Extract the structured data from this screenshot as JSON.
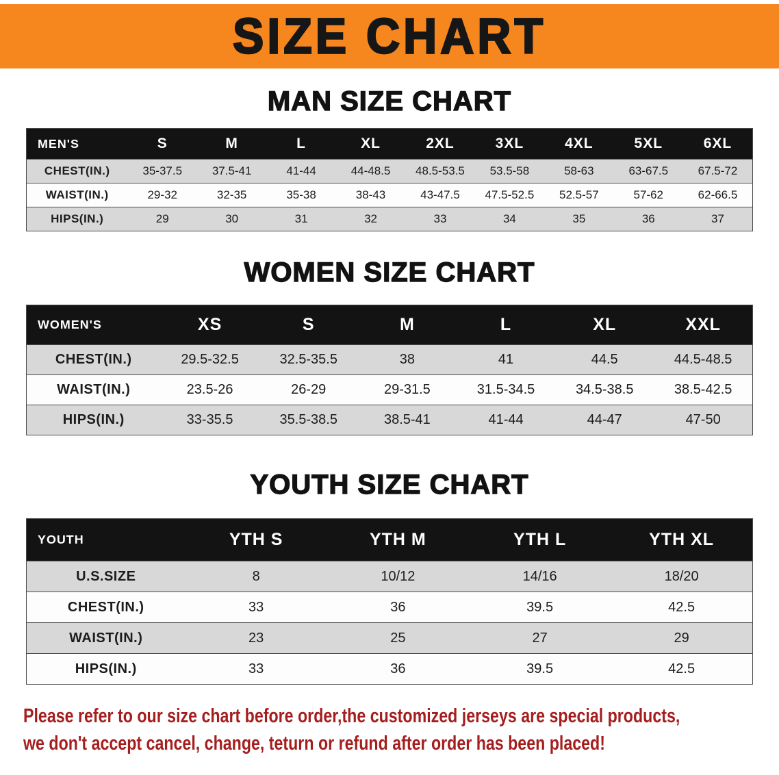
{
  "banner": {
    "title": "SIZE CHART"
  },
  "man": {
    "heading": "MAN SIZE CHART",
    "table": {
      "header": [
        "MEN'S",
        "S",
        "M",
        "L",
        "XL",
        "2XL",
        "3XL",
        "4XL",
        "5XL",
        "6XL"
      ],
      "rows": [
        [
          "CHEST(IN.)",
          "35-37.5",
          "37.5-41",
          "41-44",
          "44-48.5",
          "48.5-53.5",
          "53.5-58",
          "58-63",
          "63-67.5",
          "67.5-72"
        ],
        [
          "WAIST(IN.)",
          "29-32",
          "32-35",
          "35-38",
          "38-43",
          "43-47.5",
          "47.5-52.5",
          "52.5-57",
          "57-62",
          "62-66.5"
        ],
        [
          "HIPS(IN.)",
          "29",
          "30",
          "31",
          "32",
          "33",
          "34",
          "35",
          "36",
          "37"
        ]
      ]
    }
  },
  "women": {
    "heading": "WOMEN SIZE CHART",
    "table": {
      "header": [
        "WOMEN'S",
        "XS",
        "S",
        "M",
        "L",
        "XL",
        "XXL"
      ],
      "rows": [
        [
          "CHEST(IN.)",
          "29.5-32.5",
          "32.5-35.5",
          "38",
          "41",
          "44.5",
          "44.5-48.5"
        ],
        [
          "WAIST(IN.)",
          "23.5-26",
          "26-29",
          "29-31.5",
          "31.5-34.5",
          "34.5-38.5",
          "38.5-42.5"
        ],
        [
          "HIPS(IN.)",
          "33-35.5",
          "35.5-38.5",
          "38.5-41",
          "41-44",
          "44-47",
          "47-50"
        ]
      ]
    }
  },
  "youth": {
    "heading": "YOUTH SIZE CHART",
    "table": {
      "header": [
        "YOUTH",
        "YTH S",
        "YTH M",
        "YTH L",
        "YTH XL"
      ],
      "rows": [
        [
          "U.S.SIZE",
          "8",
          "10/12",
          "14/16",
          "18/20"
        ],
        [
          "CHEST(IN.)",
          "33",
          "36",
          "39.5",
          "42.5"
        ],
        [
          "WAIST(IN.)",
          "23",
          "25",
          "27",
          "29"
        ],
        [
          "HIPS(IN.)",
          "33",
          "36",
          "39.5",
          "42.5"
        ]
      ]
    }
  },
  "disclaimer": {
    "line1": "Please refer to our size chart before order,the customized jerseys are special products,",
    "line2": "we don't accept cancel, change, teturn or refund after order has been placed!"
  },
  "colors": {
    "banner_bg": "#F6861E",
    "banner_text": "#161616",
    "table_header_bg": "#131313",
    "table_header_text": "#FFFFFF",
    "row_alt_bg": "#D8D8D8",
    "row_bg": "#FDFDFD",
    "border": "#4A4A4A",
    "disclaimer_text": "#A51E1E"
  }
}
